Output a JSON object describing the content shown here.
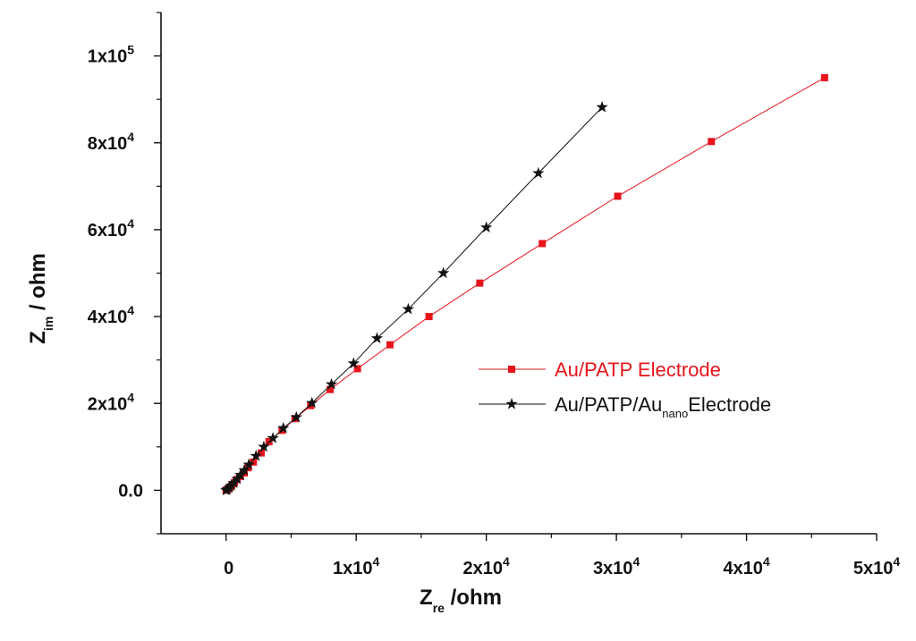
{
  "chart_data": {
    "type": "scatter",
    "x_axis": {
      "base": "Z",
      "subscript": "re",
      "suffix": " /ohm",
      "range": [
        -5000,
        50000
      ],
      "ticks": [
        {
          "value": 0,
          "label": "0"
        },
        {
          "value": 10000,
          "mant": "1x10",
          "exp": "4"
        },
        {
          "value": 20000,
          "mant": "2x10",
          "exp": "4"
        },
        {
          "value": 30000,
          "mant": "3x10",
          "exp": "4"
        },
        {
          "value": 40000,
          "mant": "4x10",
          "exp": "4"
        },
        {
          "value": 50000,
          "mant": "5x10",
          "exp": "4"
        }
      ],
      "minor_ticks": [
        5000,
        15000,
        25000,
        35000,
        45000
      ]
    },
    "y_axis": {
      "base": "Z",
      "subscript": "im",
      "suffix": " / ohm",
      "range": [
        -10000,
        110000
      ],
      "ticks": [
        {
          "value": 0,
          "label": "0.0"
        },
        {
          "value": 20000,
          "mant": "2x10",
          "exp": "4"
        },
        {
          "value": 40000,
          "mant": "4x10",
          "exp": "4"
        },
        {
          "value": 60000,
          "mant": "6x10",
          "exp": "4"
        },
        {
          "value": 80000,
          "mant": "8x10",
          "exp": "4"
        },
        {
          "value": 100000,
          "mant": "1x10",
          "exp": "5"
        }
      ],
      "minor_ticks": [
        -10000,
        10000,
        30000,
        50000,
        70000,
        90000,
        110000
      ]
    },
    "grid": false,
    "legend_position": "center-right",
    "series": [
      {
        "legend_main": "Au/PATP Electrode",
        "legend_sub": "",
        "legend_after": "",
        "color": "#e8141c",
        "text_color": "#e8141c",
        "marker": "square",
        "points": [
          [
            0,
            0
          ],
          [
            150,
            300
          ],
          [
            300,
            700
          ],
          [
            450,
            1200
          ],
          [
            650,
            1800
          ],
          [
            850,
            2500
          ],
          [
            1100,
            3200
          ],
          [
            1400,
            4000
          ],
          [
            1700,
            5200
          ],
          [
            2100,
            6500
          ],
          [
            2700,
            8600
          ],
          [
            3300,
            11200
          ],
          [
            4300,
            13800
          ],
          [
            5300,
            16500
          ],
          [
            6500,
            19500
          ],
          [
            8000,
            23200
          ],
          [
            10100,
            28000
          ],
          [
            12600,
            33500
          ],
          [
            15600,
            40000
          ],
          [
            19500,
            47700
          ],
          [
            24300,
            56800
          ],
          [
            30100,
            67700
          ],
          [
            37300,
            80300
          ],
          [
            46000,
            95000
          ]
        ]
      },
      {
        "legend_main": "Au/PATP/Au",
        "legend_sub": "nano",
        "legend_after": "Electrode",
        "color": "#111111",
        "text_color": "#111111",
        "marker": "star",
        "points": [
          [
            0,
            0
          ],
          [
            100,
            200
          ],
          [
            250,
            600
          ],
          [
            400,
            1100
          ],
          [
            600,
            1700
          ],
          [
            850,
            2600
          ],
          [
            1100,
            3500
          ],
          [
            1400,
            4600
          ],
          [
            1750,
            5900
          ],
          [
            2300,
            7900
          ],
          [
            2900,
            10000
          ],
          [
            3600,
            12000
          ],
          [
            4400,
            14300
          ],
          [
            5400,
            16800
          ],
          [
            6600,
            20100
          ],
          [
            8100,
            24400
          ],
          [
            9800,
            29200
          ],
          [
            11600,
            35000
          ],
          [
            14000,
            41700
          ],
          [
            16700,
            50000
          ],
          [
            20000,
            60500
          ],
          [
            24000,
            73000
          ],
          [
            28900,
            88200
          ]
        ]
      }
    ]
  }
}
